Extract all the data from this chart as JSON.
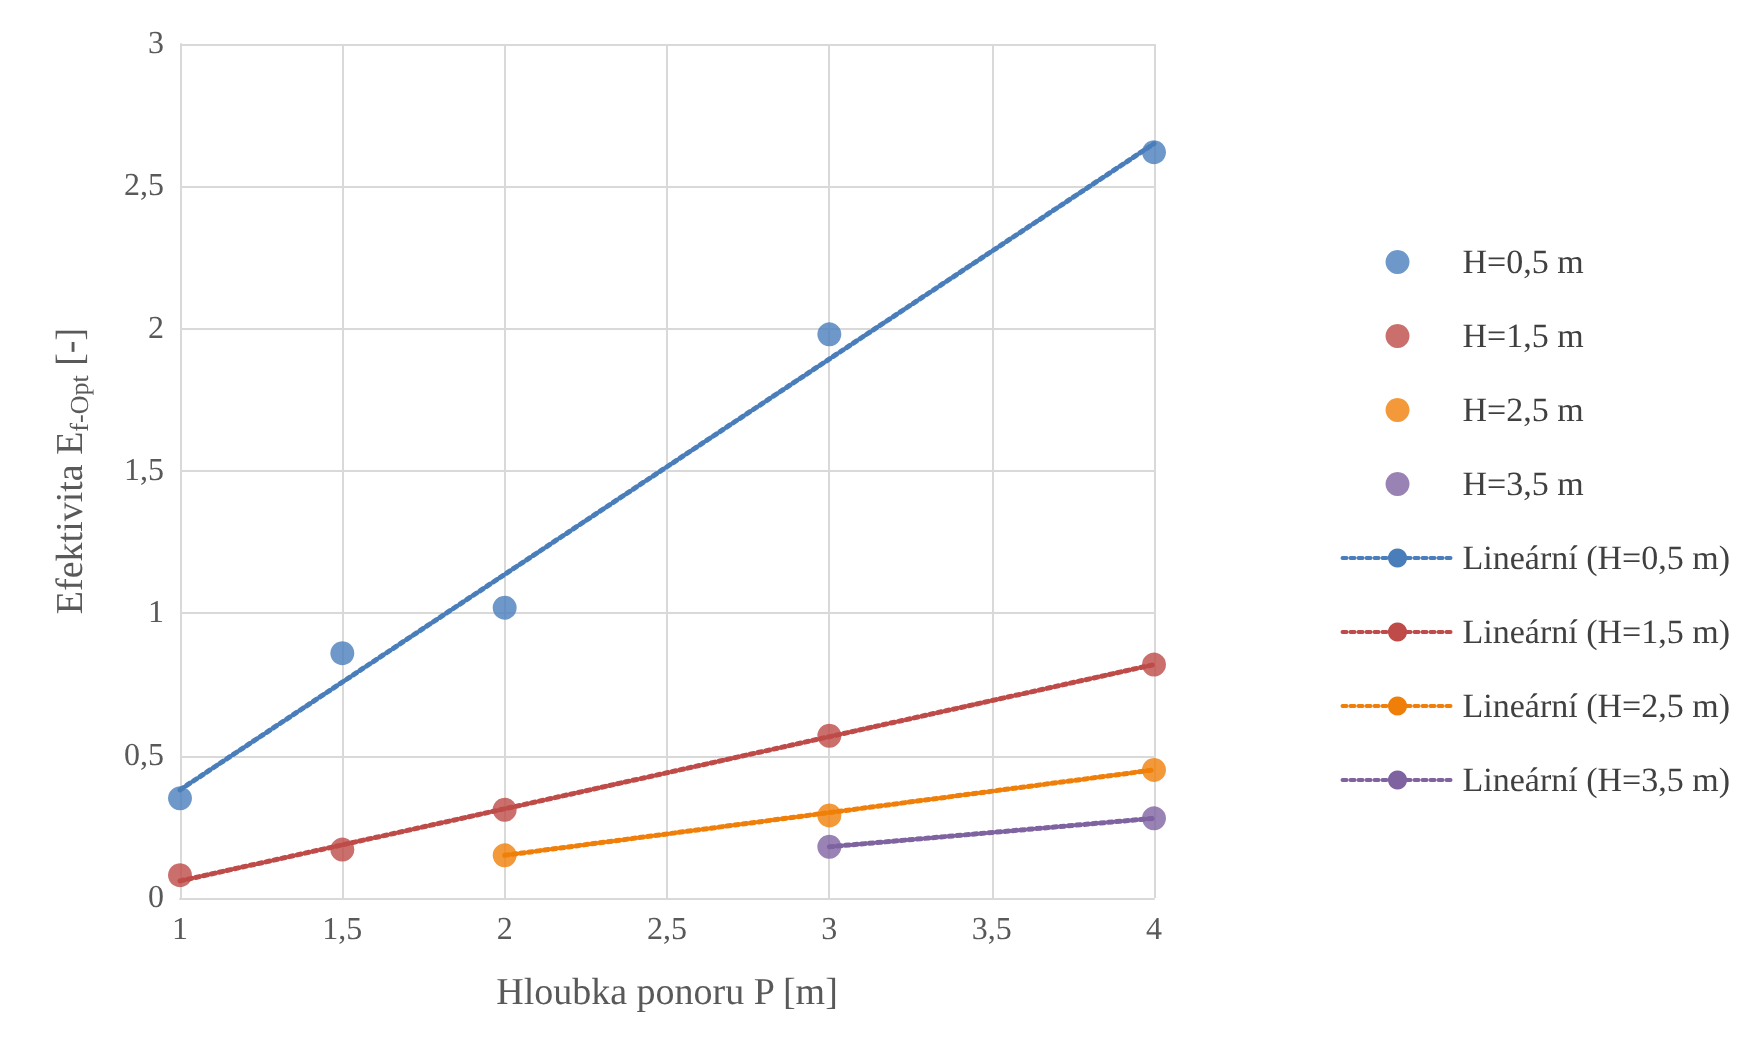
{
  "chart_data": {
    "type": "scatter",
    "xlabel": "Hloubka ponoru P [m]",
    "ylabel": "Efektivita E$_{f-Opt}$ [-]",
    "xlim": [
      1,
      4
    ],
    "xticks": [
      1,
      {
        "value": 1.5,
        "label": "1,5"
      },
      2,
      {
        "value": 2.5,
        "label": "2,5"
      },
      3,
      {
        "value": 3.5,
        "label": "3,5"
      },
      4
    ],
    "ylim": [
      0,
      3
    ],
    "yticks": [
      0,
      {
        "value": 0.5,
        "label": "0,5"
      },
      1,
      {
        "value": 1.5,
        "label": "1,5"
      },
      2,
      {
        "value": 2.5,
        "label": "2,5"
      },
      3
    ],
    "grid": true,
    "legend": "right",
    "marker": "circle",
    "series": [
      {
        "name": "H=0,5 m",
        "color": "#4a7ebb",
        "x": [
          1,
          1.5,
          2,
          3,
          4
        ],
        "values": [
          0.35,
          0.86,
          1.02,
          1.98,
          2.62
        ]
      },
      {
        "name": "H=1,5 m",
        "color": "#be4b48",
        "x": [
          1,
          1.5,
          2,
          3,
          4
        ],
        "values": [
          0.08,
          0.17,
          0.31,
          0.57,
          0.82
        ]
      },
      {
        "name": "H=2,5 m",
        "color": "#f07f09",
        "x": [
          2,
          3,
          4
        ],
        "values": [
          0.15,
          0.29,
          0.45
        ]
      },
      {
        "name": "H=3,5 m",
        "color": "#7f63a1",
        "x": [
          3,
          4
        ],
        "values": [
          0.18,
          0.28
        ]
      },
      {
        "name": "Lineární (H=0,5 m)",
        "type": "line",
        "line_style": "dotted",
        "marker": "none",
        "color": "#4a7ebb",
        "x": [
          1,
          4
        ],
        "values": [
          0.38,
          2.65
        ]
      },
      {
        "name": "Lineární (H=1,5 m)",
        "type": "line",
        "line_style": "dotted",
        "marker": "none",
        "color": "#be4b48",
        "x": [
          1,
          4
        ],
        "values": [
          0.06,
          0.82
        ]
      },
      {
        "name": "Lineární (H=2,5 m)",
        "type": "line",
        "line_style": "dotted",
        "marker": "none",
        "color": "#f07f09",
        "x": [
          2,
          4
        ],
        "values": [
          0.15,
          0.45
        ]
      },
      {
        "name": "Lineární (H=3,5 m)",
        "type": "line",
        "line_style": "dotted",
        "marker": "none",
        "color": "#7f63a1",
        "x": [
          3,
          4
        ],
        "values": [
          0.18,
          0.28
        ]
      }
    ]
  }
}
